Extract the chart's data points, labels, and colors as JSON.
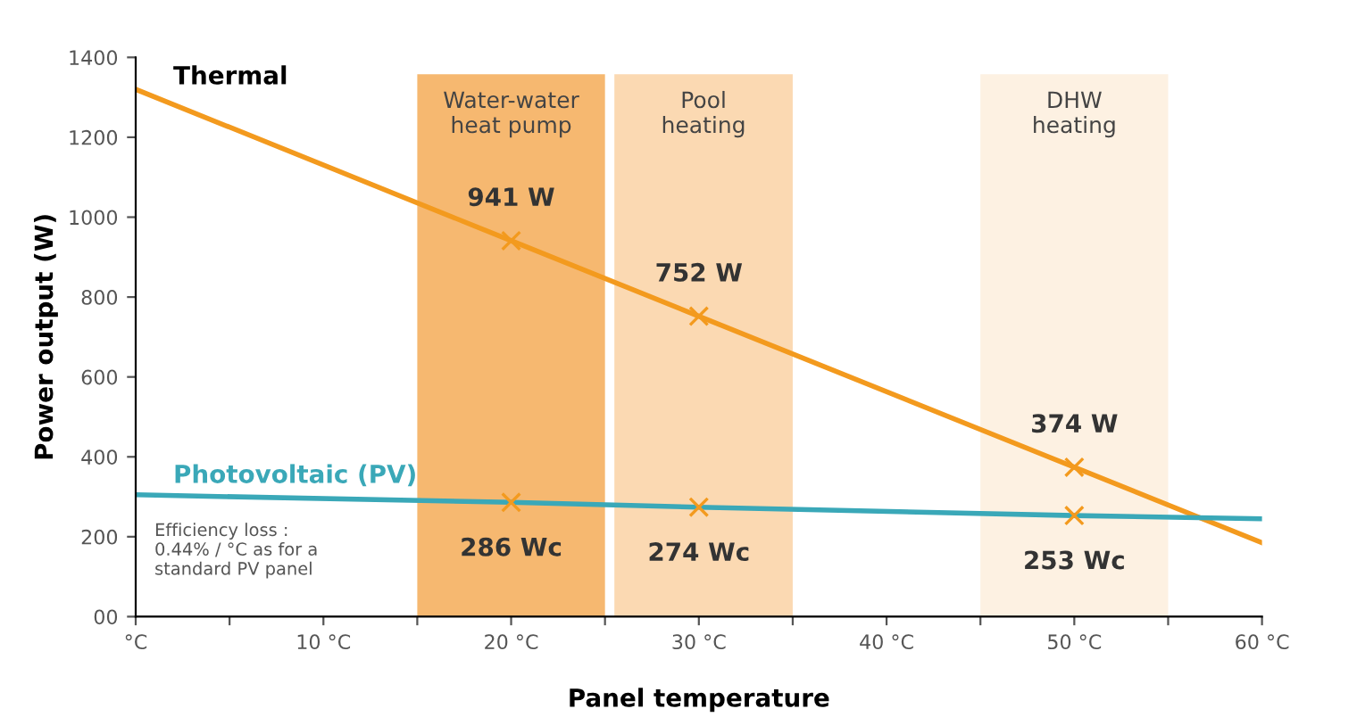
{
  "chart_data": {
    "type": "line",
    "xlabel": "Panel temperature",
    "ylabel": "Power output (W)",
    "xlim": [
      0,
      60
    ],
    "ylim": [
      0,
      1400
    ],
    "xticks": [
      {
        "value": 0,
        "label": "°C"
      },
      {
        "value": 5,
        "label": null
      },
      {
        "value": 10,
        "label": "10 °C"
      },
      {
        "value": 15,
        "label": null
      },
      {
        "value": 20,
        "label": "20 °C"
      },
      {
        "value": 25,
        "label": null
      },
      {
        "value": 30,
        "label": "30 °C"
      },
      {
        "value": 35,
        "label": null
      },
      {
        "value": 40,
        "label": "40 °C"
      },
      {
        "value": 45,
        "label": null
      },
      {
        "value": 50,
        "label": "50 °C"
      },
      {
        "value": 55,
        "label": null
      },
      {
        "value": 60,
        "label": "60 °C"
      }
    ],
    "yticks": [
      {
        "value": 0,
        "label": "00"
      },
      200,
      400,
      600,
      800,
      1000,
      1200,
      1400
    ],
    "grid": false,
    "legend": false,
    "series": [
      {
        "name": "Thermal",
        "color": "#f39a1e",
        "x": [
          0,
          20,
          30,
          50,
          60
        ],
        "values": [
          1320,
          941,
          752,
          374,
          185
        ],
        "marker": "none"
      },
      {
        "name": "Photovoltaic (PV)",
        "color": "#3aa8b8",
        "x": [
          0,
          20,
          30,
          50,
          60
        ],
        "values": [
          305,
          286,
          274,
          253,
          245
        ],
        "marker": "none"
      },
      {
        "type": "scatter",
        "color": "#f39a1e",
        "x": [
          20,
          30,
          50
        ],
        "values": [
          941,
          752,
          374
        ],
        "marker": "cross",
        "value_labels": [
          "941 W",
          "752 W",
          "374 W"
        ]
      },
      {
        "type": "scatter",
        "color": "#f39a1e",
        "x": [
          20,
          30,
          50
        ],
        "values": [
          286,
          274,
          253
        ],
        "marker": "cross",
        "value_labels": [
          "286 Wc",
          "274 Wc",
          "253 Wc"
        ]
      }
    ],
    "bands": [
      {
        "axis": "x",
        "from": 15,
        "to": 25,
        "label": "Water-water\nheat pump",
        "color": "#f6b870"
      },
      {
        "axis": "x",
        "from": 25.5,
        "to": 35,
        "label": "Pool\nheating",
        "color": "#fbd9b2"
      },
      {
        "axis": "x",
        "from": 45,
        "to": 55,
        "label": "DHW\nheating",
        "color": "#fdf1e2"
      }
    ],
    "annotations": [
      "Efficiency loss :\n0.44% / °C as for a\nstandard PV panel"
    ]
  }
}
